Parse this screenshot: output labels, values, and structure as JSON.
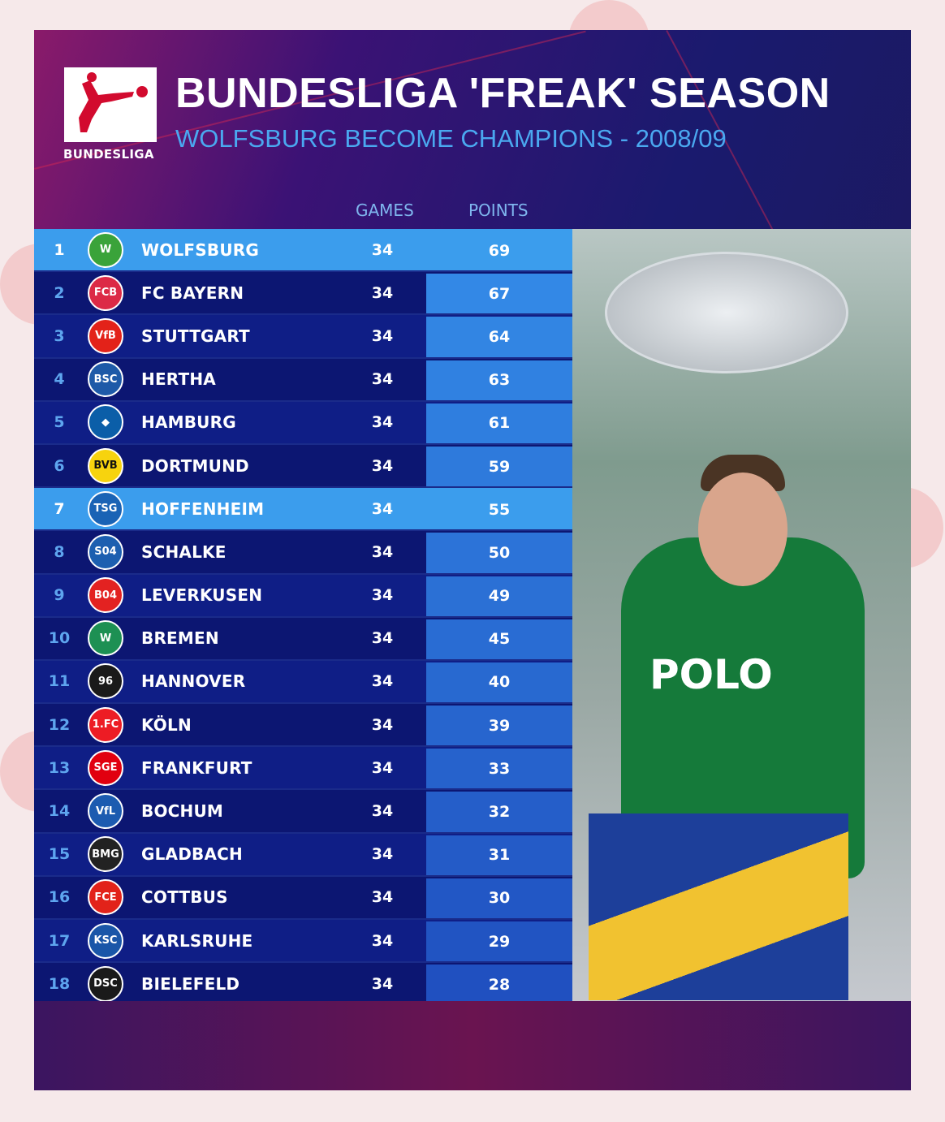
{
  "header": {
    "title": "BUNDESLIGA 'FREAK' SEASON",
    "subtitle": "WOLFSBURG BECOME CHAMPIONS - 2008/09",
    "logo_text": "BUNDESLIGA"
  },
  "columns": {
    "games": "GAMES",
    "points": "POINTS"
  },
  "colors": {
    "highlight": "#3b9ded",
    "row_dark": "#0c1672",
    "accent_text": "#4aa8f0"
  },
  "standings": [
    {
      "pos": "1",
      "team": "WOLFSBURG",
      "games": "34",
      "points": "69",
      "badge": "W",
      "badge_color": "#3aa33a",
      "highlight": true
    },
    {
      "pos": "2",
      "team": "FC BAYERN",
      "games": "34",
      "points": "67",
      "badge": "FCB",
      "badge_color": "#dc2a46"
    },
    {
      "pos": "3",
      "team": "STUTTGART",
      "games": "34",
      "points": "64",
      "badge": "VfB",
      "badge_color": "#e32219"
    },
    {
      "pos": "4",
      "team": "HERTHA",
      "games": "34",
      "points": "63",
      "badge": "BSC",
      "badge_color": "#1e5aa8"
    },
    {
      "pos": "5",
      "team": "HAMBURG",
      "games": "34",
      "points": "61",
      "badge": "◆",
      "badge_color": "#0b5ea8"
    },
    {
      "pos": "6",
      "team": "DORTMUND",
      "games": "34",
      "points": "59",
      "badge": "BVB",
      "badge_color": "#f7d30e"
    },
    {
      "pos": "7",
      "team": "HOFFENHEIM",
      "games": "34",
      "points": "55",
      "badge": "TSG",
      "badge_color": "#1a63b5",
      "highlight": true
    },
    {
      "pos": "8",
      "team": "SCHALKE",
      "games": "34",
      "points": "50",
      "badge": "S04",
      "badge_color": "#1c5fb0"
    },
    {
      "pos": "9",
      "team": "LEVERKUSEN",
      "games": "34",
      "points": "49",
      "badge": "B04",
      "badge_color": "#e32221"
    },
    {
      "pos": "10",
      "team": "BREMEN",
      "games": "34",
      "points": "45",
      "badge": "W",
      "badge_color": "#1d9053"
    },
    {
      "pos": "11",
      "team": "HANNOVER",
      "games": "34",
      "points": "40",
      "badge": "96",
      "badge_color": "#1a1a1a"
    },
    {
      "pos": "12",
      "team": "KÖLN",
      "games": "34",
      "points": "39",
      "badge": "1.FC",
      "badge_color": "#ed1c24"
    },
    {
      "pos": "13",
      "team": "FRANKFURT",
      "games": "34",
      "points": "33",
      "badge": "SGE",
      "badge_color": "#e1000f"
    },
    {
      "pos": "14",
      "team": "BOCHUM",
      "games": "34",
      "points": "32",
      "badge": "VfL",
      "badge_color": "#1c5bb0"
    },
    {
      "pos": "15",
      "team": "GLADBACH",
      "games": "34",
      "points": "31",
      "badge": "BMG",
      "badge_color": "#222222"
    },
    {
      "pos": "16",
      "team": "COTTBUS",
      "games": "34",
      "points": "30",
      "badge": "FCE",
      "badge_color": "#e2231a"
    },
    {
      "pos": "17",
      "team": "KARLSRUHE",
      "games": "34",
      "points": "29",
      "badge": "KSC",
      "badge_color": "#1a56a8"
    },
    {
      "pos": "18",
      "team": "BIELEFELD",
      "games": "34",
      "points": "28",
      "badge": "DSC",
      "badge_color": "#1a1a1a"
    }
  ],
  "photo": {
    "shirt_text": "POLO"
  }
}
